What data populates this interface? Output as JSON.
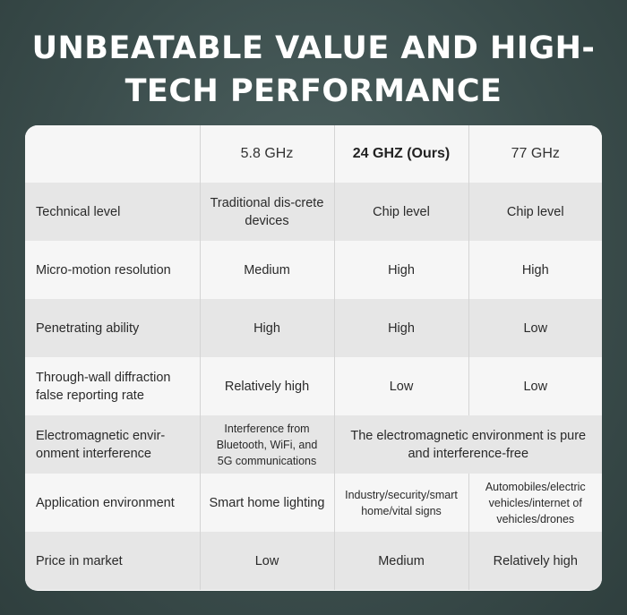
{
  "title": "UNBEATABLE VALUE AND HIGH-TECH PERFORMANCE",
  "table": {
    "headers": [
      "",
      "5.8 GHz",
      "24 GHZ (Ours)",
      "77 GHz"
    ],
    "rows": [
      {
        "label": "Technical level",
        "cells": [
          "Traditional dis-crete devices",
          "Chip level",
          "Chip level"
        ]
      },
      {
        "label": "Micro-motion resolution",
        "cells": [
          "Medium",
          "High",
          "High"
        ]
      },
      {
        "label": "Penetrating ability",
        "cells": [
          "High",
          "High",
          "Low"
        ]
      },
      {
        "label": "Through-wall diffraction false reporting rate",
        "cells": [
          "Relatively high",
          "Low",
          "Low"
        ]
      },
      {
        "label": "Electromagnetic envir-onment interference",
        "cells": [
          "Interference from Bluetooth, WiFi, and 5G communications",
          "The electromagnetic environment is pure and interference-free"
        ]
      },
      {
        "label": "Application environment",
        "cells": [
          "Smart home lighting",
          "Industry/security/smart home/vital signs",
          "Automobiles/electric vehicles/internet of vehicles/drones"
        ]
      },
      {
        "label": "Price in market",
        "cells": [
          "Low",
          "Medium",
          "Relatively high"
        ]
      }
    ]
  }
}
